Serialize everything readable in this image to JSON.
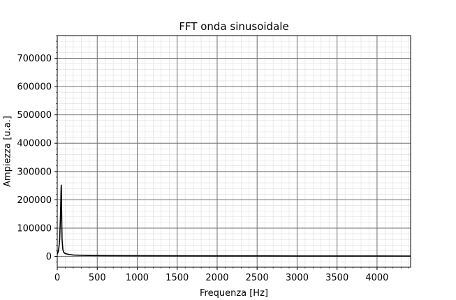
{
  "chart_data": {
    "type": "line",
    "title": "FFT onda sinusoidale",
    "xlabel": "Frequenza [Hz]",
    "ylabel": "Ampiezza [u.a.]",
    "xlim": [
      0,
      4420
    ],
    "ylim": [
      -38000,
      780000
    ],
    "xticks": [
      0,
      500,
      1000,
      1500,
      2000,
      2500,
      3000,
      3500,
      4000
    ],
    "yticks": [
      0,
      100000,
      200000,
      300000,
      400000,
      500000,
      600000,
      700000
    ],
    "grid": true,
    "minor_grid": true,
    "line_color": "#000000",
    "series": [
      {
        "x": [
          0,
          10,
          20,
          30,
          40,
          45,
          48,
          50,
          52,
          55,
          60,
          70,
          80,
          100,
          150,
          200,
          300,
          400,
          500,
          700,
          1000,
          1500,
          2000,
          2500,
          3000,
          3500,
          4000,
          4420
        ],
        "y": [
          8000,
          15000,
          30000,
          60000,
          140000,
          200000,
          240000,
          252000,
          230000,
          150000,
          60000,
          25000,
          15000,
          10000,
          7000,
          5000,
          4000,
          3500,
          3000,
          2800,
          2500,
          2200,
          2000,
          1800,
          1700,
          1600,
          1500,
          1400
        ]
      }
    ]
  }
}
